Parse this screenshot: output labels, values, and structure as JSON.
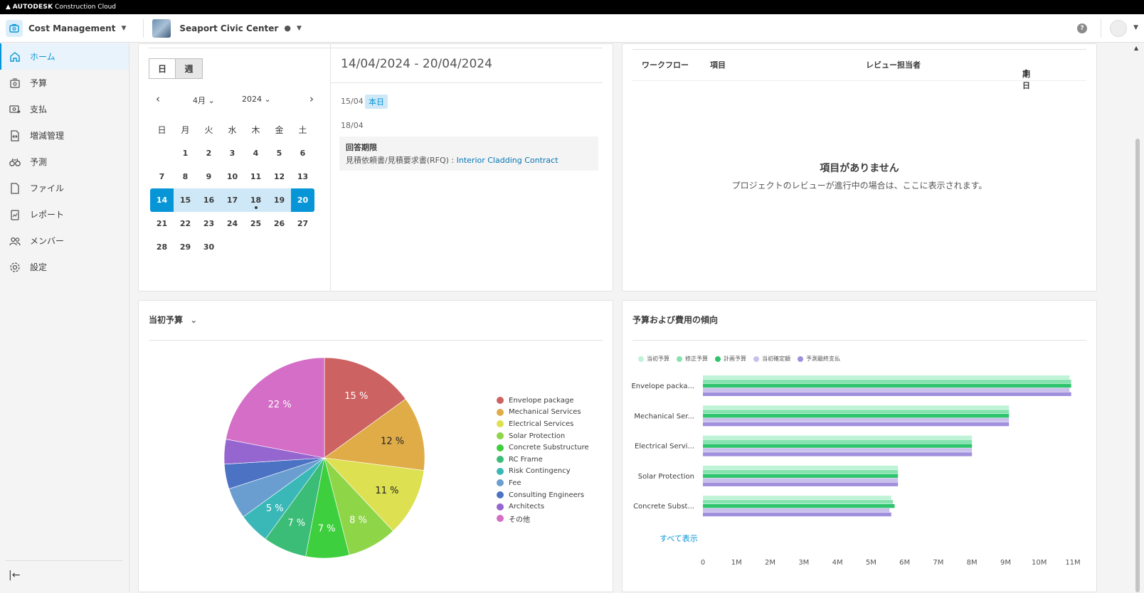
{
  "topbar": {
    "brand": "AUTODESK",
    "product": "Construction Cloud"
  },
  "header": {
    "module": "Cost Management",
    "project": "Seaport Civic Center"
  },
  "sidebar": {
    "items": [
      {
        "label": "ホーム",
        "icon": "home-icon",
        "active": true
      },
      {
        "label": "予算",
        "icon": "budget-icon"
      },
      {
        "label": "支払",
        "icon": "payment-icon"
      },
      {
        "label": "増減管理",
        "icon": "change-order-icon"
      },
      {
        "label": "予測",
        "icon": "forecast-icon"
      },
      {
        "label": "ファイル",
        "icon": "file-icon"
      },
      {
        "label": "レポート",
        "icon": "report-icon"
      },
      {
        "label": "メンバー",
        "icon": "members-icon"
      },
      {
        "label": "設定",
        "icon": "settings-icon"
      }
    ]
  },
  "calendar": {
    "toggle_day": "日",
    "toggle_week": "週",
    "month": "4月",
    "year": "2024",
    "weekdays": [
      "日",
      "月",
      "火",
      "水",
      "木",
      "金",
      "土"
    ],
    "weeks": [
      [
        "",
        "1",
        "2",
        "3",
        "4",
        "5",
        "6"
      ],
      [
        "7",
        "8",
        "9",
        "10",
        "11",
        "12",
        "13"
      ],
      [
        "14",
        "15",
        "16",
        "17",
        "18",
        "19",
        "20"
      ],
      [
        "21",
        "22",
        "23",
        "24",
        "25",
        "26",
        "27"
      ],
      [
        "28",
        "29",
        "30",
        "",
        "",
        "",
        ""
      ]
    ],
    "range_title": "14/04/2024 - 20/04/2024",
    "day1": "15/04",
    "today_badge": "本日",
    "day2": "18/04",
    "event_title": "回答期限",
    "event_prefix": "見積依頼書/見積要求書(RFQ) : ",
    "event_link": "Interior Cladding Contract"
  },
  "review": {
    "columns": [
      "ワークフロー",
      "項目",
      "レビュー担当者",
      "期日"
    ],
    "empty_title": "項目がありません",
    "empty_sub": "プロジェクトのレビューが進行中の場合は、ここに表示されます。"
  },
  "pie_card": {
    "title": "当初予算"
  },
  "bar_card": {
    "title": "予算および費用の傾向",
    "show_all": "すべて表示"
  },
  "colors": {
    "accent": "#0696d7"
  },
  "chart_data": [
    {
      "type": "pie",
      "title": "当初予算",
      "slices": [
        {
          "name": "Envelope package",
          "value": 15,
          "label": "15 %",
          "color": "#cd6262"
        },
        {
          "name": "Mechanical Services",
          "value": 12,
          "label": "12 %",
          "color": "#e0ac48"
        },
        {
          "name": "Electrical Services",
          "value": 11,
          "label": "11 %",
          "color": "#dde050"
        },
        {
          "name": "Solar Protection",
          "value": 8,
          "label": "8 %",
          "color": "#8fd548"
        },
        {
          "name": "Concrete Substructure",
          "value": 7,
          "label": "7 %",
          "color": "#3ecf3e"
        },
        {
          "name": "RC Frame",
          "value": 7,
          "label": "7 %",
          "color": "#3bbd78"
        },
        {
          "name": "Risk Contingency",
          "value": 5,
          "label": "5 %",
          "color": "#3ab8b8"
        },
        {
          "name": "Fee",
          "value": 5,
          "label": "",
          "color": "#6a9ed0"
        },
        {
          "name": "Consulting Engineers",
          "value": 4,
          "label": "",
          "color": "#4c72c4"
        },
        {
          "name": "Architects",
          "value": 4,
          "label": "",
          "color": "#9566d0"
        },
        {
          "name": "その他",
          "value": 22,
          "label": "22 %",
          "color": "#d46ec6"
        }
      ]
    },
    {
      "type": "bar",
      "title": "予算および費用の傾向",
      "orientation": "horizontal",
      "categories": [
        "Envelope packa...",
        "Mechanical Ser...",
        "Electrical Servi...",
        "Solar Protection",
        "Concrete Subst..."
      ],
      "series": [
        {
          "name": "当初予算",
          "color": "#bff3d7",
          "values": [
            10.9,
            9.1,
            8.0,
            5.8,
            5.6
          ]
        },
        {
          "name": "修正予算",
          "color": "#86e3b0",
          "values": [
            10.95,
            9.1,
            8.0,
            5.8,
            5.65
          ]
        },
        {
          "name": "計画予算",
          "color": "#2ec46e",
          "values": [
            10.95,
            9.1,
            8.0,
            5.8,
            5.7
          ]
        },
        {
          "name": "当初確定額",
          "color": "#c9c0ec",
          "values": [
            10.9,
            9.1,
            8.0,
            5.8,
            5.55
          ]
        },
        {
          "name": "予測最終支払",
          "color": "#a08fdc",
          "values": [
            10.95,
            9.1,
            8.0,
            5.8,
            5.6
          ]
        }
      ],
      "xticks": [
        "0",
        "1M",
        "2M",
        "3M",
        "4M",
        "5M",
        "6M",
        "7M",
        "8M",
        "9M",
        "10M",
        "11M"
      ],
      "xlim": [
        0,
        11
      ]
    }
  ]
}
